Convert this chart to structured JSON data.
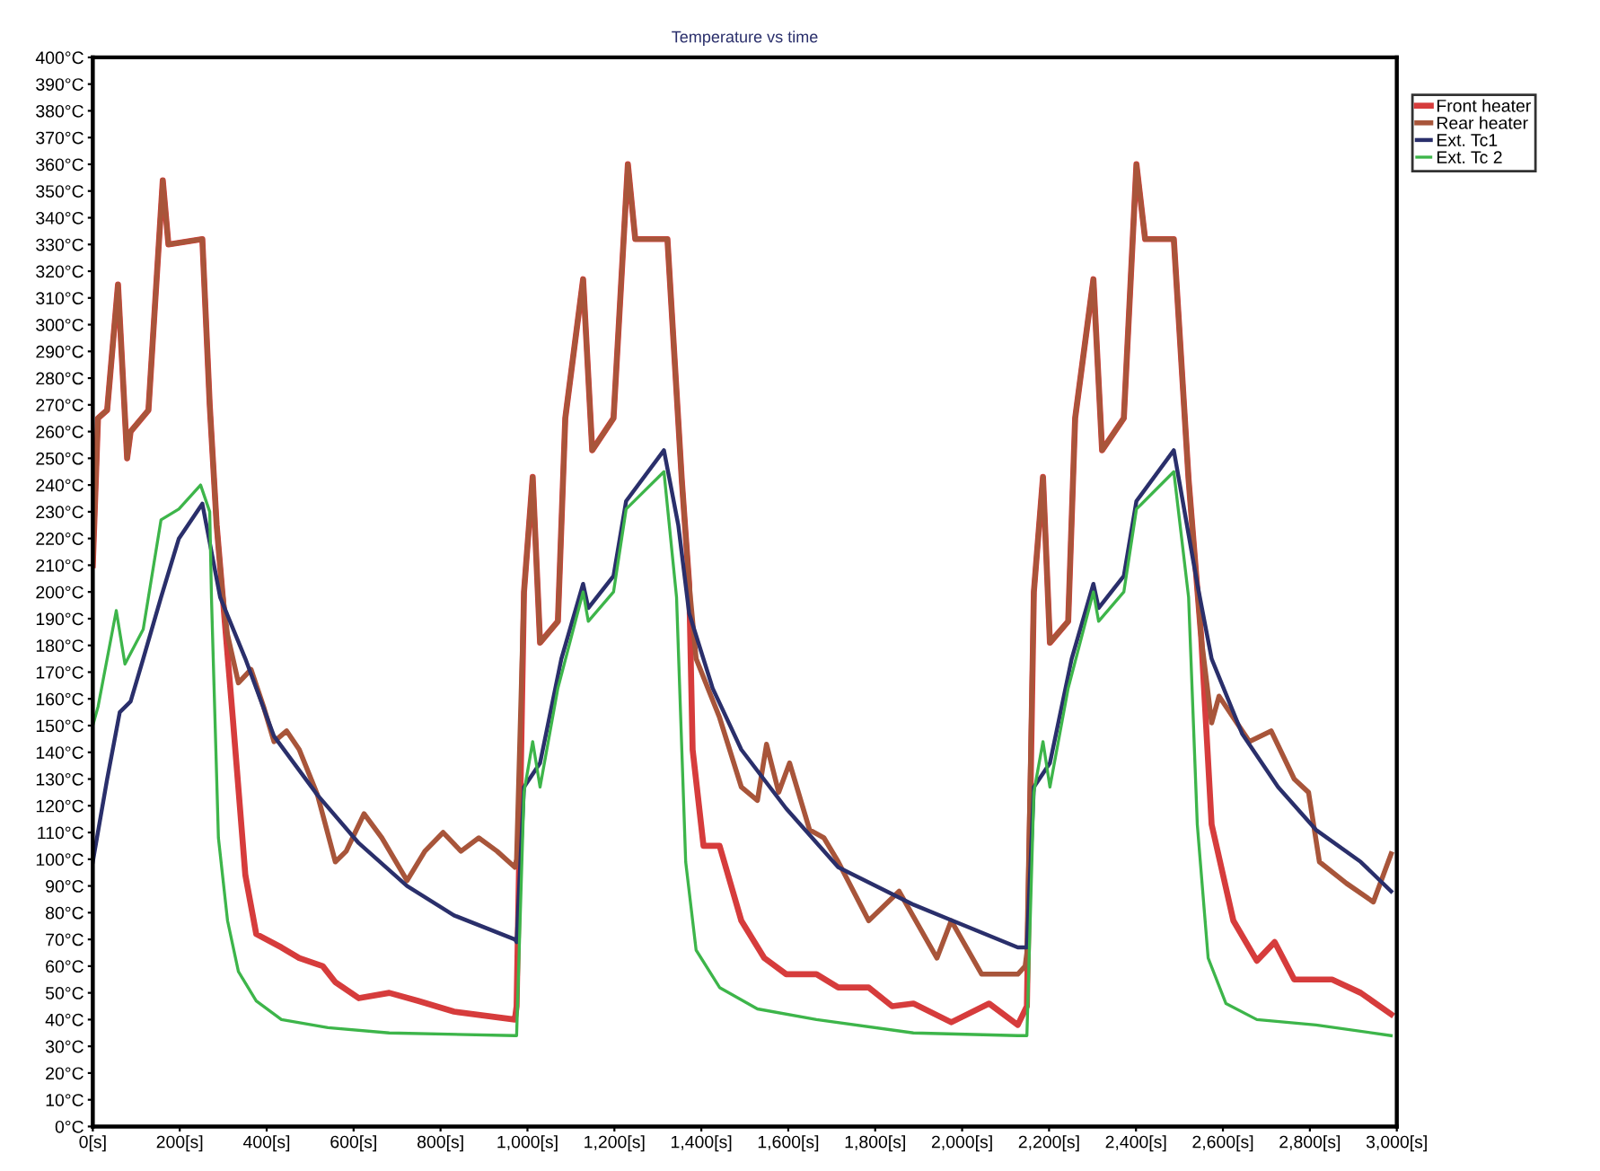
{
  "chart_data": {
    "type": "line",
    "title": "Temperature vs time",
    "xlim": [
      0,
      3000
    ],
    "ylim": [
      0,
      400
    ],
    "xticks": [
      {
        "value": 0,
        "label": "0[s]"
      },
      {
        "value": 200,
        "label": "200[s]"
      },
      {
        "value": 400,
        "label": "400[s]"
      },
      {
        "value": 600,
        "label": "600[s]"
      },
      {
        "value": 800,
        "label": "800[s]"
      },
      {
        "value": 1000,
        "label": "1,000[s]"
      },
      {
        "value": 1200,
        "label": "1,200[s]"
      },
      {
        "value": 1400,
        "label": "1,400[s]"
      },
      {
        "value": 1600,
        "label": "1,600[s]"
      },
      {
        "value": 1800,
        "label": "1,800[s]"
      },
      {
        "value": 2000,
        "label": "2,000[s]"
      },
      {
        "value": 2200,
        "label": "2,200[s]"
      },
      {
        "value": 2400,
        "label": "2,400[s]"
      },
      {
        "value": 2600,
        "label": "2,600[s]"
      },
      {
        "value": 2800,
        "label": "2,800[s]"
      },
      {
        "value": 3000,
        "label": "3,000[s]"
      }
    ],
    "yticks": [
      {
        "value": 0,
        "label": "0°C"
      },
      {
        "value": 10,
        "label": "10°C"
      },
      {
        "value": 20,
        "label": "20°C"
      },
      {
        "value": 30,
        "label": "30°C"
      },
      {
        "value": 40,
        "label": "40°C"
      },
      {
        "value": 50,
        "label": "50°C"
      },
      {
        "value": 60,
        "label": "60°C"
      },
      {
        "value": 70,
        "label": "70°C"
      },
      {
        "value": 80,
        "label": "80°C"
      },
      {
        "value": 90,
        "label": "90°C"
      },
      {
        "value": 100,
        "label": "100°C"
      },
      {
        "value": 110,
        "label": "110°C"
      },
      {
        "value": 120,
        "label": "120°C"
      },
      {
        "value": 130,
        "label": "130°C"
      },
      {
        "value": 140,
        "label": "140°C"
      },
      {
        "value": 150,
        "label": "150°C"
      },
      {
        "value": 160,
        "label": "160°C"
      },
      {
        "value": 170,
        "label": "170°C"
      },
      {
        "value": 180,
        "label": "180°C"
      },
      {
        "value": 190,
        "label": "190°C"
      },
      {
        "value": 200,
        "label": "200°C"
      },
      {
        "value": 210,
        "label": "210°C"
      },
      {
        "value": 220,
        "label": "220°C"
      },
      {
        "value": 230,
        "label": "230°C"
      },
      {
        "value": 240,
        "label": "240°C"
      },
      {
        "value": 250,
        "label": "250°C"
      },
      {
        "value": 260,
        "label": "260°C"
      },
      {
        "value": 270,
        "label": "270°C"
      },
      {
        "value": 280,
        "label": "280°C"
      },
      {
        "value": 290,
        "label": "290°C"
      },
      {
        "value": 300,
        "label": "300°C"
      },
      {
        "value": 310,
        "label": "310°C"
      },
      {
        "value": 320,
        "label": "320°C"
      },
      {
        "value": 330,
        "label": "330°C"
      },
      {
        "value": 340,
        "label": "340°C"
      },
      {
        "value": 350,
        "label": "350°C"
      },
      {
        "value": 360,
        "label": "360°C"
      },
      {
        "value": 370,
        "label": "370°C"
      },
      {
        "value": 380,
        "label": "380°C"
      },
      {
        "value": 390,
        "label": "390°C"
      },
      {
        "value": 400,
        "label": "400°C"
      }
    ],
    "legend": "top right",
    "marker": "none",
    "line_style": "solid",
    "series": [
      {
        "name": "Front heater",
        "color": "#d63c3c",
        "x": [
          0,
          12,
          33,
          58,
          79,
          87,
          128,
          161,
          174,
          252,
          269,
          285,
          298,
          322,
          351,
          376,
          434,
          475,
          529,
          558,
          612,
          682,
          748,
          831,
          971,
          975,
          992,
          1012,
          1029,
          1070,
          1087,
          1128,
          1149,
          1198,
          1231,
          1248,
          1322,
          1355,
          1372,
          1380,
          1405,
          1442,
          1492,
          1545,
          1595,
          1665,
          1715,
          1785,
          1839,
          1888,
          1975,
          2062,
          2128,
          2149,
          2165,
          2186,
          2202,
          2244,
          2260,
          2302,
          2322,
          2372,
          2401,
          2421,
          2487,
          2521,
          2550,
          2574,
          2624,
          2678,
          2719,
          2764,
          2851,
          2917,
          2987
        ],
        "values": [
          210,
          265,
          268,
          315,
          250,
          260,
          268,
          354,
          330,
          332,
          270,
          225,
          200,
          153,
          94,
          72,
          67,
          63,
          60,
          54,
          48,
          50,
          47,
          43,
          40,
          45,
          200,
          243,
          181,
          189,
          265,
          317,
          253,
          265,
          360,
          332,
          332,
          242,
          203,
          141,
          105,
          105,
          77,
          63,
          57,
          57,
          52,
          52,
          45,
          46,
          39,
          46,
          38,
          45,
          200,
          243,
          181,
          189,
          265,
          317,
          253,
          265,
          360,
          332,
          332,
          242,
          183,
          113,
          77,
          62,
          69,
          55,
          55,
          50,
          42
        ]
      },
      {
        "name": "Rear heater",
        "color": "#a8553a",
        "x": [
          0,
          12,
          33,
          58,
          79,
          87,
          128,
          161,
          174,
          252,
          269,
          285,
          298,
          310,
          335,
          364,
          393,
          417,
          446,
          475,
          517,
          558,
          583,
          624,
          665,
          723,
          764,
          806,
          847,
          888,
          930,
          971,
          975,
          992,
          1012,
          1029,
          1070,
          1087,
          1128,
          1149,
          1198,
          1231,
          1248,
          1322,
          1355,
          1372,
          1388,
          1442,
          1492,
          1529,
          1550,
          1578,
          1603,
          1649,
          1682,
          1715,
          1785,
          1855,
          1942,
          1975,
          2045,
          2128,
          2145,
          2149,
          2165,
          2186,
          2202,
          2244,
          2260,
          2302,
          2322,
          2372,
          2401,
          2421,
          2487,
          2521,
          2550,
          2574,
          2591,
          2661,
          2711,
          2764,
          2797,
          2822,
          2884,
          2946,
          2987
        ],
        "values": [
          210,
          265,
          268,
          315,
          250,
          260,
          268,
          354,
          330,
          332,
          270,
          225,
          200,
          184,
          166,
          171,
          157,
          144,
          148,
          141,
          124,
          99,
          103,
          117,
          108,
          92,
          103,
          110,
          103,
          108,
          103,
          97,
          100,
          200,
          243,
          181,
          189,
          265,
          317,
          253,
          265,
          360,
          332,
          332,
          242,
          203,
          175,
          153,
          127,
          122,
          143,
          125,
          136,
          111,
          108,
          99,
          77,
          88,
          63,
          77,
          57,
          57,
          60,
          65,
          200,
          243,
          181,
          189,
          265,
          317,
          253,
          265,
          360,
          332,
          332,
          242,
          183,
          151,
          161,
          144,
          148,
          130,
          125,
          99,
          91,
          84,
          102
        ]
      },
      {
        "name": "Ext. Tc1",
        "color": "#2a2f6b",
        "x": [
          0,
          33,
          62,
          87,
          116,
          157,
          198,
          252,
          293,
          351,
          417,
          517,
          612,
          723,
          831,
          971,
          975,
          992,
          1029,
          1078,
          1128,
          1140,
          1198,
          1227,
          1314,
          1347,
          1372,
          1426,
          1492,
          1595,
          1715,
          1888,
          2128,
          2149,
          2165,
          2202,
          2252,
          2302,
          2314,
          2372,
          2401,
          2487,
          2541,
          2574,
          2644,
          2727,
          2814,
          2917,
          2987
        ],
        "values": [
          99,
          130,
          155,
          159,
          175,
          198,
          220,
          233,
          198,
          175,
          146,
          124,
          106,
          90,
          79,
          70,
          69,
          127,
          136,
          175,
          203,
          194,
          206,
          234,
          253,
          225,
          192,
          164,
          141,
          119,
          97,
          83,
          67,
          67,
          127,
          136,
          175,
          203,
          194,
          206,
          234,
          253,
          203,
          175,
          147,
          127,
          111,
          99,
          88
        ]
      },
      {
        "name": "Ext. Tc 2",
        "color": "#3db54a",
        "x": [
          0,
          12,
          54,
          74,
          116,
          157,
          198,
          248,
          269,
          273,
          289,
          310,
          335,
          376,
          434,
          541,
          682,
          971,
          975,
          992,
          1012,
          1029,
          1070,
          1128,
          1140,
          1198,
          1227,
          1314,
          1343,
          1364,
          1388,
          1442,
          1529,
          1665,
          1888,
          2128,
          2149,
          2165,
          2186,
          2202,
          2244,
          2302,
          2314,
          2372,
          2401,
          2487,
          2521,
          2541,
          2566,
          2607,
          2678,
          2814,
          2987
        ],
        "values": [
          150,
          157,
          193,
          173,
          186,
          227,
          231,
          240,
          230,
          198,
          108,
          77,
          58,
          47,
          40,
          37,
          35,
          34,
          34,
          125,
          144,
          127,
          164,
          200,
          189,
          200,
          231,
          245,
          198,
          99,
          66,
          52,
          44,
          40,
          35,
          34,
          34,
          125,
          144,
          127,
          164,
          200,
          189,
          200,
          231,
          245,
          198,
          113,
          63,
          46,
          40,
          38,
          34
        ]
      }
    ]
  }
}
